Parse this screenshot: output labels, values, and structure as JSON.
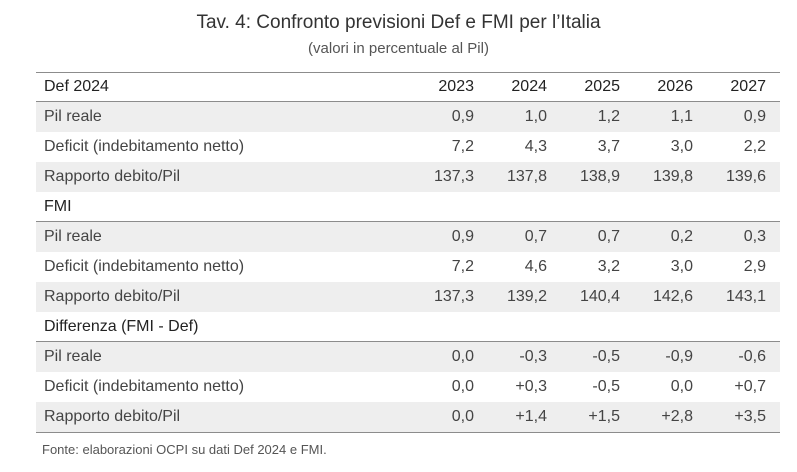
{
  "title": "Tav. 4: Confronto previsioni Def e FMI per l’Italia",
  "subtitle": "(valori in percentuale al Pil)",
  "years": [
    "2023",
    "2024",
    "2025",
    "2026",
    "2027"
  ],
  "sections": [
    {
      "name": "Def 2024",
      "rows": [
        {
          "label": "Pil reale",
          "values": [
            "0,9",
            "1,0",
            "1,2",
            "1,1",
            "0,9"
          ]
        },
        {
          "label": "Deficit (indebitamento netto)",
          "values": [
            "7,2",
            "4,3",
            "3,7",
            "3,0",
            "2,2"
          ]
        },
        {
          "label": "Rapporto debito/Pil",
          "values": [
            "137,3",
            "137,8",
            "138,9",
            "139,8",
            "139,6"
          ]
        }
      ]
    },
    {
      "name": "FMI",
      "rows": [
        {
          "label": "Pil reale",
          "values": [
            "0,9",
            "0,7",
            "0,7",
            "0,2",
            "0,3"
          ]
        },
        {
          "label": "Deficit (indebitamento netto)",
          "values": [
            "7,2",
            "4,6",
            "3,2",
            "3,0",
            "2,9"
          ]
        },
        {
          "label": "Rapporto debito/Pil",
          "values": [
            "137,3",
            "139,2",
            "140,4",
            "142,6",
            "143,1"
          ]
        }
      ]
    },
    {
      "name": "Differenza (FMI - Def)",
      "rows": [
        {
          "label": "Pil reale",
          "values": [
            "0,0",
            "-0,3",
            "-0,5",
            "-0,9",
            "-0,6"
          ]
        },
        {
          "label": "Deficit (indebitamento netto)",
          "values": [
            "0,0",
            "+0,3",
            "-0,5",
            "0,0",
            "+0,7"
          ]
        },
        {
          "label": "Rapporto debito/Pil",
          "values": [
            "0,0",
            "+1,4",
            "+1,5",
            "+2,8",
            "+3,5"
          ]
        }
      ]
    }
  ],
  "source": "Fonte: elaborazioni OCPI su dati Def 2024 e FMI."
}
